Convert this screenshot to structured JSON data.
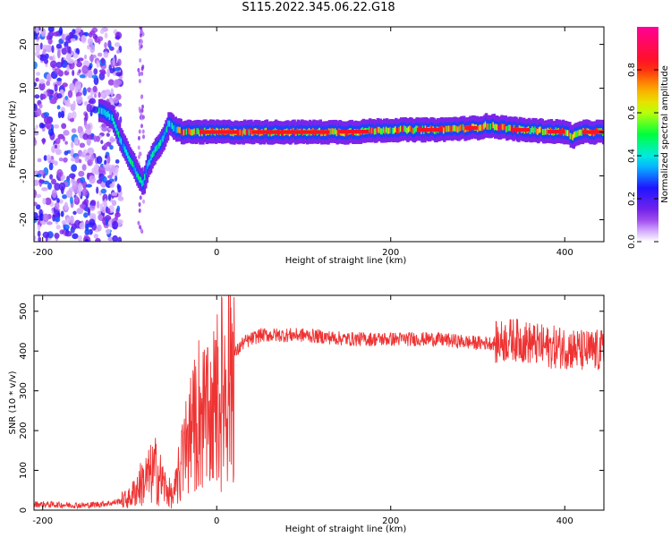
{
  "title": "S115.2022.345.06.22.G18",
  "chart_data": [
    {
      "type": "heatmap",
      "title": "S115.2022.345.06.22.G18",
      "xlabel": "Height of straight line (km)",
      "ylabel": "Frequency (Hz)",
      "xlim": [
        -210,
        445
      ],
      "ylim": [
        -25,
        24
      ],
      "xticks": [
        -200,
        0,
        200,
        400
      ],
      "yticks": [
        20,
        10,
        0,
        -10,
        -20
      ],
      "colorbar": {
        "label": "Normalized spectral amplitude",
        "range": [
          0,
          1
        ],
        "ticks": [
          0.0,
          0.2,
          0.4,
          0.6,
          0.8
        ],
        "tick_labels": [
          "0.0",
          "0.2",
          "0.4",
          "0.6",
          "0.8"
        ],
        "colormap": "rainbow (white-purple-blue-cyan-green-yellow-red-magenta)"
      },
      "ridge": {
        "description": "Dominant-frequency trace",
        "x": [
          -130,
          -120,
          -110,
          -100,
          -90,
          -85,
          -80,
          -70,
          -60,
          -55,
          -50,
          -40,
          -30,
          -20,
          0,
          50,
          100,
          150,
          200,
          250,
          300,
          310,
          350,
          400,
          410,
          420,
          445
        ],
        "y": [
          5,
          3,
          -2,
          -6,
          -10,
          -12,
          -8,
          -4,
          -1,
          2,
          1,
          0,
          0,
          0,
          0,
          0,
          0,
          0,
          0.5,
          0.5,
          1,
          1.5,
          0.5,
          0,
          -1,
          0,
          0
        ]
      },
      "noise_region_x": [
        -210,
        -125
      ]
    },
    {
      "type": "line",
      "xlabel": "Height of straight line (km)",
      "ylabel": "SNR (10 * v/v)",
      "xlim": [
        -210,
        445
      ],
      "ylim": [
        0,
        540
      ],
      "xticks": [
        -200,
        0,
        200,
        400
      ],
      "yticks": [
        0,
        100,
        200,
        300,
        400,
        500
      ],
      "color": "#ee3333",
      "envelope": {
        "x": [
          -210,
          -150,
          -120,
          -100,
          -90,
          -80,
          -70,
          -60,
          -50,
          -40,
          -30,
          -20,
          -10,
          0,
          10,
          20,
          30,
          50,
          100,
          150,
          200,
          250,
          300,
          320,
          340,
          360,
          380,
          400,
          420,
          445
        ],
        "y": [
          15,
          12,
          18,
          30,
          60,
          80,
          100,
          60,
          30,
          120,
          180,
          250,
          220,
          270,
          320,
          390,
          420,
          440,
          440,
          430,
          430,
          430,
          420,
          420,
          430,
          420,
          410,
          410,
          400,
          400
        ]
      }
    }
  ]
}
